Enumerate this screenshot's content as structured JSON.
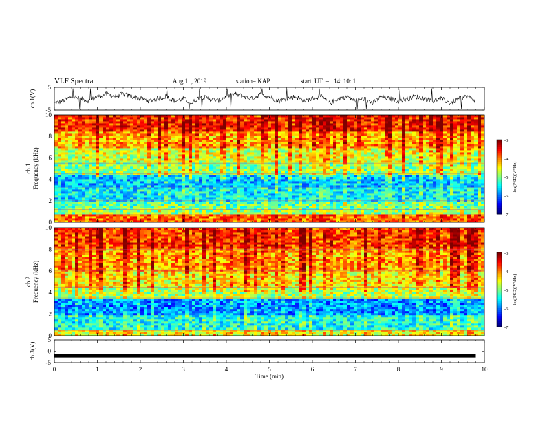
{
  "header": {
    "title": "VLF Spectra",
    "date": "Aug.1  , 2019",
    "station": "station= KAP",
    "start": "start  UT  =   14: 10: 1"
  },
  "chart_data": [
    {
      "type": "line",
      "panel": "ch1-waveform",
      "title": "",
      "ylabel": "ch.1(V)",
      "ylim": [
        -5,
        5
      ],
      "yticks": [
        "5",
        "-5"
      ],
      "xlim": [
        0,
        10
      ],
      "series": [
        {
          "x": [
            0.0,
            0.2,
            0.4,
            0.6,
            0.8,
            1.0,
            1.2,
            1.4,
            1.6,
            1.8,
            2.0,
            2.2,
            2.4,
            2.6,
            2.8,
            3.0,
            3.2,
            3.4,
            3.6,
            3.8,
            4.0,
            4.2,
            4.4,
            4.6,
            4.8,
            5.0,
            5.2,
            5.4,
            5.6,
            5.8,
            6.0,
            6.2,
            6.4,
            6.6,
            6.8,
            7.0,
            7.2,
            7.4,
            7.6,
            7.8,
            8.0,
            8.2,
            8.4,
            8.6,
            8.8,
            9.0,
            9.2,
            9.4,
            9.6,
            9.8
          ],
          "values": [
            -2,
            -1,
            1,
            0,
            -1,
            1,
            2,
            1,
            2,
            1,
            0,
            -1,
            0,
            1,
            -1,
            0,
            -2,
            1,
            0,
            -1,
            1,
            2,
            1,
            0,
            2,
            1,
            -1,
            0,
            1,
            -1,
            0,
            1,
            -2,
            0,
            1,
            -1,
            0,
            -2,
            1,
            0,
            -1,
            0,
            1,
            0,
            -1,
            0,
            -2,
            0,
            1,
            -1
          ]
        }
      ]
    },
    {
      "type": "heatmap",
      "panel": "ch1-spectrogram",
      "title": "",
      "ylabel": "ch.1\nFrequency  (kHz)",
      "ylim": [
        0,
        10
      ],
      "yticks": [
        "0",
        "2",
        "4",
        "6",
        "8",
        "10"
      ],
      "xlim": [
        0,
        10
      ],
      "colorbar": {
        "label": "log(PSD)(V²/Hz)",
        "range": [
          -7,
          -3
        ],
        "ticks": [
          "-3",
          "-4",
          "-5",
          "-6",
          "-7"
        ]
      },
      "bands_khz": [
        {
          "f0": 0.0,
          "f1": 0.7,
          "level": -4.0
        },
        {
          "f0": 0.7,
          "f1": 1.2,
          "level": -5.0
        },
        {
          "f0": 1.2,
          "f1": 2.0,
          "level": -5.2
        },
        {
          "f0": 2.0,
          "f1": 3.2,
          "level": -5.6
        },
        {
          "f0": 3.2,
          "f1": 4.5,
          "level": -5.8
        },
        {
          "f0": 4.5,
          "f1": 5.5,
          "level": -5.1
        },
        {
          "f0": 5.5,
          "f1": 7.0,
          "level": -4.8
        },
        {
          "f0": 7.0,
          "f1": 8.5,
          "level": -4.3
        },
        {
          "f0": 8.5,
          "f1": 10.0,
          "level": -3.8
        }
      ]
    },
    {
      "type": "heatmap",
      "panel": "ch2-spectrogram",
      "title": "",
      "ylabel": "ch.2\nFrequency  (kHz)",
      "ylim": [
        0,
        10
      ],
      "yticks": [
        "0",
        "2",
        "4",
        "6",
        "8",
        "10"
      ],
      "xlim": [
        0,
        10
      ],
      "colorbar": {
        "label": "log(PSD)(V²/Hz)",
        "range": [
          -7,
          -3
        ],
        "ticks": [
          "-3",
          "-4",
          "-5",
          "-6",
          "-7"
        ]
      },
      "bands_khz": [
        {
          "f0": 0.0,
          "f1": 0.5,
          "level": -4.6
        },
        {
          "f0": 0.5,
          "f1": 2.0,
          "level": -5.5
        },
        {
          "f0": 2.0,
          "f1": 3.5,
          "level": -6.0
        },
        {
          "f0": 3.5,
          "f1": 4.5,
          "level": -4.9
        },
        {
          "f0": 4.5,
          "f1": 6.0,
          "level": -4.6
        },
        {
          "f0": 6.0,
          "f1": 8.0,
          "level": -4.3
        },
        {
          "f0": 8.0,
          "f1": 10.0,
          "level": -3.9
        }
      ]
    },
    {
      "type": "line",
      "panel": "ch3-waveform",
      "title": "",
      "ylabel": "ch.3(V)",
      "xlabel": "Time  (min)",
      "ylim": [
        -5,
        5
      ],
      "yticks": [
        "5",
        "0",
        "-5"
      ],
      "xlim": [
        0,
        10
      ],
      "xticks": [
        "0",
        "1",
        "2",
        "3",
        "4",
        "5",
        "6",
        "7",
        "8",
        "9",
        "10"
      ],
      "series": [
        {
          "x": [
            0,
            9.8
          ],
          "values": [
            -2,
            -2
          ]
        }
      ]
    }
  ]
}
